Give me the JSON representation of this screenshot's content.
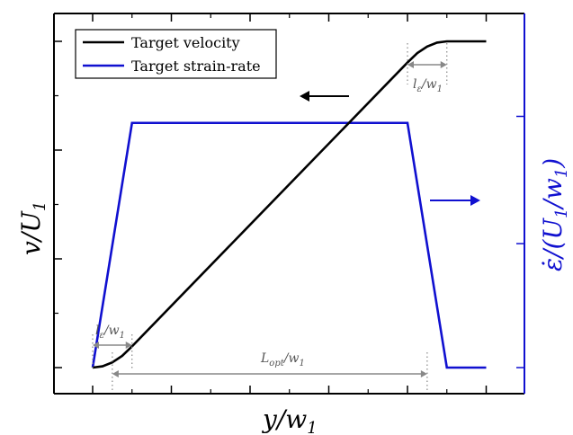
{
  "chart_data": {
    "type": "line",
    "xlabel": "y/w",
    "xlabel_sub": "1",
    "ylabel_left": "v/U",
    "ylabel_left_sub": "1",
    "ylabel_right": "ε̇/(U",
    "ylabel_right_sub": "1",
    "ylabel_right_mid": "/w",
    "ylabel_right_sub2": "1",
    "ylabel_right_end": ")",
    "xlim": [
      0,
      12
    ],
    "ylim_left": [
      0,
      1
    ],
    "ylim_right": [
      0,
      1
    ],
    "series": [
      {
        "name": "Target velocity",
        "axis": "left",
        "color": "#000000",
        "x": [
          1.0,
          1.25,
          1.5,
          1.75,
          2.0,
          9.0,
          9.25,
          9.5,
          9.75,
          10.0,
          11.0
        ],
        "y": [
          0.0,
          0.004,
          0.016,
          0.036,
          0.065,
          0.935,
          0.964,
          0.984,
          0.996,
          1.0,
          1.0
        ]
      },
      {
        "name": "Target strain-rate",
        "axis": "right",
        "color": "#1010d0",
        "x": [
          1.0,
          2.0,
          9.0,
          10.0,
          11.0
        ],
        "y": [
          0.0,
          0.75,
          0.75,
          0.0,
          0.0
        ]
      }
    ],
    "annotations": {
      "l_eps_top": "l",
      "l_eps_top_sub": "ε",
      "l_eps_top_rest": "/w",
      "l_eps_top_sub2": "1",
      "l_eps_bottom": "l",
      "l_eps_bottom_sub": "ε",
      "l_eps_bottom_rest": "/w",
      "l_eps_bottom_sub2": "1",
      "l_opt": "L",
      "l_opt_sub": "opt",
      "l_opt_rest": "/w",
      "l_opt_sub2": "1"
    },
    "legend_placement": "top-left",
    "grid": false,
    "colors": {
      "velocity": "#000000",
      "strain_rate": "#1010d0",
      "annotation": "#888888",
      "right_axis": "#1010d0"
    }
  }
}
